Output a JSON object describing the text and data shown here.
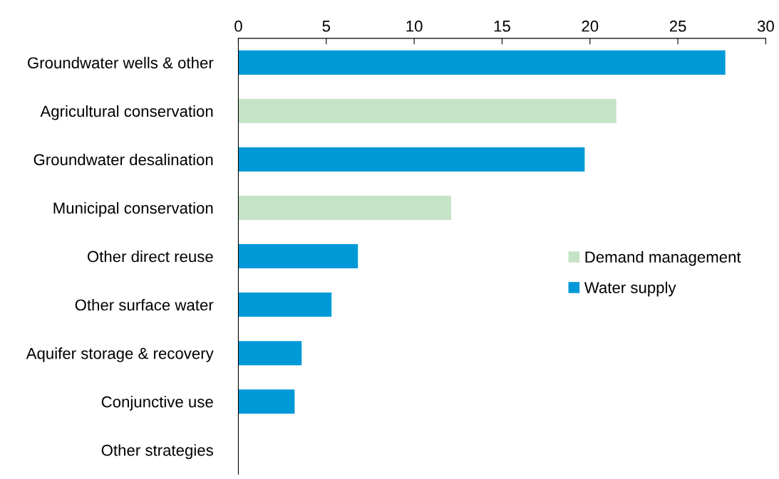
{
  "chart_data": {
    "type": "bar",
    "orientation": "horizontal",
    "stacked": true,
    "categories": [
      "Groundwater wells & other",
      "Agricultural conservation",
      "Groundwater desalination",
      "Municipal conservation",
      "Other direct reuse",
      "Other surface water",
      "Aquifer storage & recovery",
      "Conjunctive use",
      "Other strategies"
    ],
    "series": [
      {
        "name": "Demand management",
        "color": "#c5e3c6",
        "values": [
          null,
          21.5,
          null,
          12.1,
          null,
          null,
          null,
          null,
          null
        ]
      },
      {
        "name": "Water supply",
        "color": "#0099d8",
        "values": [
          27.7,
          null,
          19.7,
          null,
          6.8,
          5.3,
          3.6,
          3.2,
          0
        ]
      }
    ],
    "xlim": [
      0,
      30
    ],
    "xticks": [
      0,
      5,
      10,
      15,
      20,
      25,
      30
    ],
    "grid": false,
    "legend": "right"
  }
}
